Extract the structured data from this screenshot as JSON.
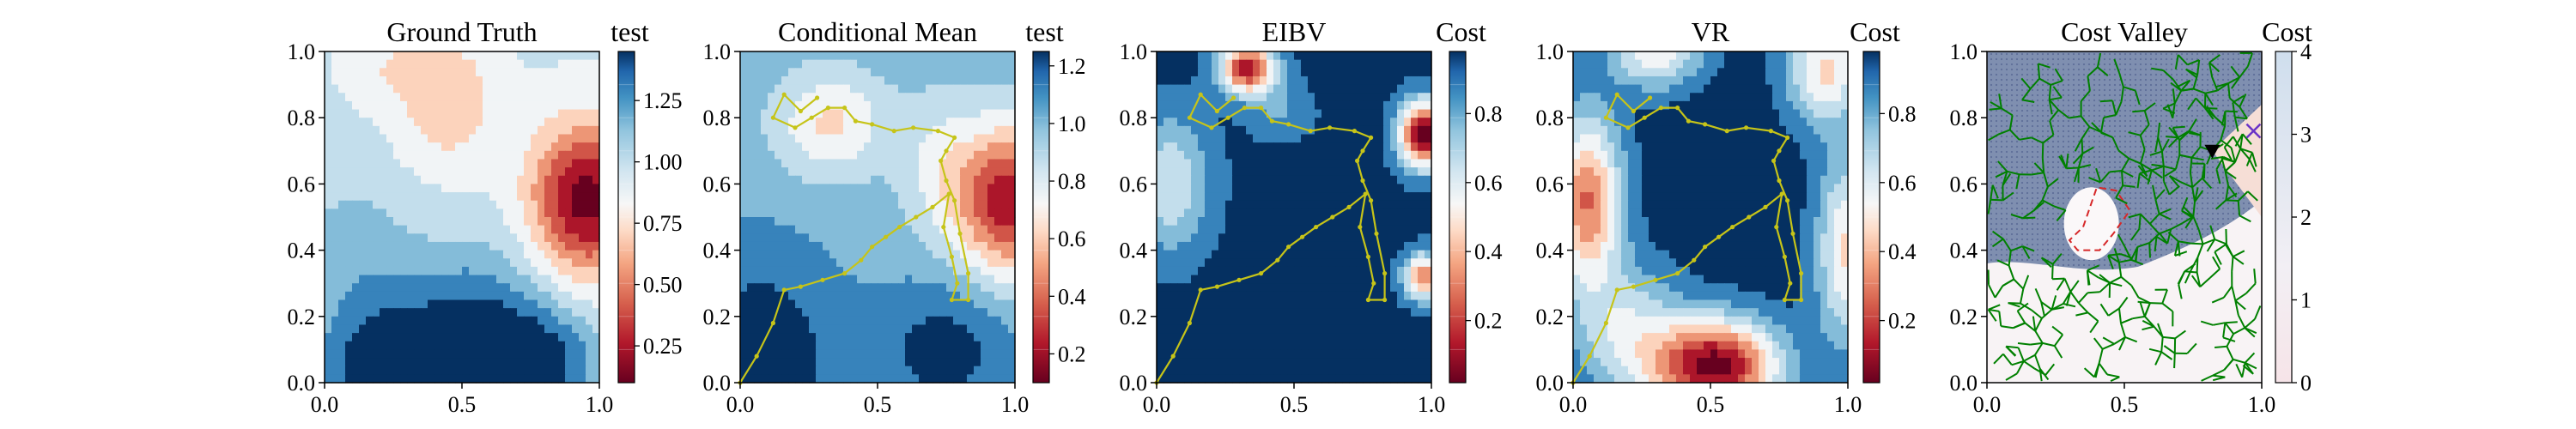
{
  "chart_data": [
    {
      "type": "heatmap",
      "title": "Ground Truth",
      "xlim": [
        0,
        1
      ],
      "ylim": [
        0,
        1
      ],
      "xticks": [
        "0.0",
        "0.5",
        "1.0"
      ],
      "yticks": [
        "0.0",
        "0.2",
        "0.4",
        "0.6",
        "0.8",
        "1.0"
      ],
      "colorbar": {
        "label": "test",
        "colormap": "RdBu",
        "range": [
          0.1,
          1.45
        ],
        "ticks": [
          "0.25",
          "0.50",
          "0.75",
          "1.00",
          "1.25"
        ]
      },
      "field": {
        "base": 0.95,
        "bumps": [
          {
            "x": 0.95,
            "y": 0.55,
            "amp": -0.85,
            "sx": 0.14,
            "sy": 0.16
          },
          {
            "x": 0.45,
            "y": 0.85,
            "amp": -0.3,
            "sx": 0.12,
            "sy": 0.14
          },
          {
            "x": 0.25,
            "y": 0.95,
            "amp": -0.15,
            "sx": 0.12,
            "sy": 0.08
          },
          {
            "x": 0.2,
            "y": 0.05,
            "amp": 0.5,
            "sx": 0.18,
            "sy": 0.14
          },
          {
            "x": 0.55,
            "y": 0.15,
            "amp": 0.45,
            "sx": 0.2,
            "sy": 0.18
          },
          {
            "x": 0.8,
            "y": 0.05,
            "amp": 0.4,
            "sx": 0.15,
            "sy": 0.12
          },
          {
            "x": 0.1,
            "y": 0.4,
            "amp": 0.2,
            "sx": 0.15,
            "sy": 0.15
          }
        ]
      }
    },
    {
      "type": "heatmap",
      "title": "Conditional Mean",
      "xlim": [
        0,
        1
      ],
      "ylim": [
        0,
        1
      ],
      "xticks": [
        "0.0",
        "0.5",
        "1.0"
      ],
      "yticks": [
        "0.0",
        "0.2",
        "0.4",
        "0.6",
        "0.8",
        "1.0"
      ],
      "colorbar": {
        "label": "test",
        "colormap": "RdBu",
        "range": [
          0.1,
          1.25
        ],
        "ticks": [
          "0.2",
          "0.4",
          "0.6",
          "0.8",
          "1.0",
          "1.2"
        ]
      },
      "field": {
        "base": 1.0,
        "bumps": [
          {
            "x": 0.97,
            "y": 0.55,
            "amp": -0.8,
            "sx": 0.13,
            "sy": 0.16
          },
          {
            "x": 0.33,
            "y": 0.78,
            "amp": -0.35,
            "sx": 0.14,
            "sy": 0.11
          },
          {
            "x": 0.72,
            "y": 0.65,
            "amp": -0.2,
            "sx": 0.1,
            "sy": 0.15
          },
          {
            "x": 0.08,
            "y": 0.05,
            "amp": 0.3,
            "sx": 0.2,
            "sy": 0.25
          },
          {
            "x": 0.75,
            "y": 0.1,
            "amp": 0.25,
            "sx": 0.18,
            "sy": 0.15
          }
        ]
      },
      "path": {
        "color": "#c6c419",
        "points": [
          [
            0.0,
            0.0
          ],
          [
            0.06,
            0.08
          ],
          [
            0.12,
            0.18
          ],
          [
            0.16,
            0.28
          ],
          [
            0.22,
            0.29
          ],
          [
            0.3,
            0.31
          ],
          [
            0.38,
            0.33
          ],
          [
            0.44,
            0.37
          ],
          [
            0.48,
            0.41
          ],
          [
            0.53,
            0.44
          ],
          [
            0.58,
            0.47
          ],
          [
            0.64,
            0.5
          ],
          [
            0.7,
            0.53
          ],
          [
            0.76,
            0.57
          ],
          [
            0.74,
            0.47
          ],
          [
            0.77,
            0.38
          ],
          [
            0.79,
            0.3
          ],
          [
            0.77,
            0.25
          ],
          [
            0.83,
            0.25
          ],
          [
            0.83,
            0.33
          ],
          [
            0.8,
            0.45
          ],
          [
            0.78,
            0.55
          ],
          [
            0.75,
            0.61
          ],
          [
            0.73,
            0.67
          ],
          [
            0.75,
            0.7
          ],
          [
            0.78,
            0.74
          ],
          [
            0.72,
            0.76
          ],
          [
            0.63,
            0.77
          ],
          [
            0.56,
            0.76
          ],
          [
            0.48,
            0.78
          ],
          [
            0.42,
            0.79
          ],
          [
            0.38,
            0.83
          ],
          [
            0.32,
            0.83
          ],
          [
            0.26,
            0.8
          ],
          [
            0.2,
            0.77
          ],
          [
            0.12,
            0.8
          ],
          [
            0.16,
            0.87
          ],
          [
            0.22,
            0.82
          ],
          [
            0.28,
            0.86
          ]
        ]
      }
    },
    {
      "type": "heatmap",
      "title": "EIBV",
      "xlim": [
        0,
        1
      ],
      "ylim": [
        0,
        1
      ],
      "xticks": [
        "0.0",
        "0.5",
        "1.0"
      ],
      "yticks": [
        "0.0",
        "0.2",
        "0.4",
        "0.6",
        "0.8",
        "1.0"
      ],
      "colorbar": {
        "label": "Cost",
        "colormap": "RdBu",
        "range": [
          0.02,
          0.98
        ],
        "ticks": [
          "0.2",
          "0.4",
          "0.6",
          "0.8"
        ]
      },
      "field": {
        "base": 0.96,
        "bumps": [
          {
            "x": 0.33,
            "y": 0.95,
            "amp": -0.85,
            "sx": 0.07,
            "sy": 0.055
          },
          {
            "x": 0.97,
            "y": 0.75,
            "amp": -0.95,
            "sx": 0.06,
            "sy": 0.07
          },
          {
            "x": 0.97,
            "y": 0.32,
            "amp": -0.65,
            "sx": 0.05,
            "sy": 0.05
          },
          {
            "x": 0.05,
            "y": 0.6,
            "amp": -0.35,
            "sx": 0.1,
            "sy": 0.14
          },
          {
            "x": 0.45,
            "y": 0.82,
            "amp": -0.15,
            "sx": 0.08,
            "sy": 0.06
          }
        ]
      },
      "path": {
        "color": "#c6c419",
        "points": [
          [
            0.0,
            0.0
          ],
          [
            0.06,
            0.08
          ],
          [
            0.12,
            0.18
          ],
          [
            0.16,
            0.28
          ],
          [
            0.22,
            0.29
          ],
          [
            0.3,
            0.31
          ],
          [
            0.38,
            0.33
          ],
          [
            0.44,
            0.37
          ],
          [
            0.48,
            0.41
          ],
          [
            0.53,
            0.44
          ],
          [
            0.58,
            0.47
          ],
          [
            0.64,
            0.5
          ],
          [
            0.7,
            0.53
          ],
          [
            0.76,
            0.57
          ],
          [
            0.74,
            0.47
          ],
          [
            0.77,
            0.38
          ],
          [
            0.79,
            0.3
          ],
          [
            0.77,
            0.25
          ],
          [
            0.83,
            0.25
          ],
          [
            0.83,
            0.33
          ],
          [
            0.8,
            0.45
          ],
          [
            0.78,
            0.55
          ],
          [
            0.75,
            0.61
          ],
          [
            0.73,
            0.67
          ],
          [
            0.75,
            0.7
          ],
          [
            0.78,
            0.74
          ],
          [
            0.72,
            0.76
          ],
          [
            0.63,
            0.77
          ],
          [
            0.56,
            0.76
          ],
          [
            0.48,
            0.78
          ],
          [
            0.42,
            0.79
          ],
          [
            0.38,
            0.83
          ],
          [
            0.32,
            0.83
          ],
          [
            0.26,
            0.8
          ],
          [
            0.2,
            0.77
          ],
          [
            0.12,
            0.8
          ],
          [
            0.16,
            0.87
          ],
          [
            0.22,
            0.82
          ],
          [
            0.28,
            0.86
          ]
        ]
      }
    },
    {
      "type": "heatmap",
      "title": "VR",
      "xlim": [
        0,
        1
      ],
      "ylim": [
        0,
        1
      ],
      "xticks": [
        "0.0",
        "0.5",
        "1.0"
      ],
      "yticks": [
        "0.0",
        "0.2",
        "0.4",
        "0.6",
        "0.8",
        "1.0"
      ],
      "colorbar": {
        "label": "Cost",
        "colormap": "RdBu",
        "range": [
          0.02,
          0.98
        ],
        "ticks": [
          "0.2",
          "0.4",
          "0.6",
          "0.8"
        ]
      },
      "field": {
        "base": 0.98,
        "bumps": [
          {
            "x": 0.05,
            "y": 0.55,
            "amp": -0.7,
            "sx": 0.09,
            "sy": 0.18
          },
          {
            "x": 0.52,
            "y": 0.05,
            "amp": -0.95,
            "sx": 0.16,
            "sy": 0.1
          },
          {
            "x": 0.3,
            "y": 1.0,
            "amp": -0.45,
            "sx": 0.12,
            "sy": 0.08
          },
          {
            "x": 0.92,
            "y": 0.95,
            "amp": -0.5,
            "sx": 0.1,
            "sy": 0.12
          },
          {
            "x": 1.0,
            "y": 0.4,
            "amp": -0.5,
            "sx": 0.08,
            "sy": 0.2
          },
          {
            "x": 0.2,
            "y": 0.15,
            "amp": -0.35,
            "sx": 0.14,
            "sy": 0.14
          }
        ]
      },
      "path": {
        "color": "#c6c419",
        "points": [
          [
            0.0,
            0.0
          ],
          [
            0.06,
            0.08
          ],
          [
            0.12,
            0.18
          ],
          [
            0.16,
            0.28
          ],
          [
            0.22,
            0.29
          ],
          [
            0.3,
            0.31
          ],
          [
            0.38,
            0.33
          ],
          [
            0.44,
            0.37
          ],
          [
            0.48,
            0.41
          ],
          [
            0.53,
            0.44
          ],
          [
            0.58,
            0.47
          ],
          [
            0.64,
            0.5
          ],
          [
            0.7,
            0.53
          ],
          [
            0.76,
            0.57
          ],
          [
            0.74,
            0.47
          ],
          [
            0.77,
            0.38
          ],
          [
            0.79,
            0.3
          ],
          [
            0.77,
            0.25
          ],
          [
            0.83,
            0.25
          ],
          [
            0.83,
            0.33
          ],
          [
            0.8,
            0.45
          ],
          [
            0.78,
            0.55
          ],
          [
            0.75,
            0.61
          ],
          [
            0.73,
            0.67
          ],
          [
            0.75,
            0.7
          ],
          [
            0.78,
            0.74
          ],
          [
            0.72,
            0.76
          ],
          [
            0.63,
            0.77
          ],
          [
            0.56,
            0.76
          ],
          [
            0.48,
            0.78
          ],
          [
            0.42,
            0.79
          ],
          [
            0.38,
            0.83
          ],
          [
            0.32,
            0.83
          ],
          [
            0.26,
            0.8
          ],
          [
            0.2,
            0.77
          ],
          [
            0.12,
            0.8
          ],
          [
            0.16,
            0.87
          ],
          [
            0.22,
            0.82
          ],
          [
            0.28,
            0.86
          ]
        ]
      }
    },
    {
      "type": "heatmap",
      "title": "Cost Valley",
      "xlim": [
        0,
        1
      ],
      "ylim": [
        0,
        1
      ],
      "xticks": [
        "0.0",
        "0.5",
        "1.0"
      ],
      "yticks": [
        "0.0",
        "0.2",
        "0.4",
        "0.6",
        "0.8",
        "1.0"
      ],
      "colorbar": {
        "label": "Cost",
        "colormap": "white-to-lightblue",
        "range": [
          0,
          4
        ],
        "ticks": [
          "0",
          "1",
          "2",
          "3",
          "4"
        ]
      },
      "valley": {
        "color": "#7f8fb0",
        "boundary_y": 0.35,
        "hole": {
          "x": 0.38,
          "y": 0.48,
          "rx": 0.1,
          "ry": 0.11
        }
      },
      "obstacle": {
        "color": "#d62728",
        "points": [
          [
            0.35,
            0.47
          ],
          [
            0.4,
            0.59
          ],
          [
            0.47,
            0.58
          ],
          [
            0.52,
            0.52
          ],
          [
            0.46,
            0.45
          ],
          [
            0.41,
            0.4
          ],
          [
            0.33,
            0.4
          ],
          [
            0.3,
            0.43
          ]
        ]
      },
      "rrt": {
        "color": "#008000",
        "root": [
          0.82,
          0.7
        ]
      },
      "current_location": [
        0.82,
        0.7
      ],
      "target": [
        0.97,
        0.76
      ],
      "target_color": "#6a33c7"
    }
  ]
}
